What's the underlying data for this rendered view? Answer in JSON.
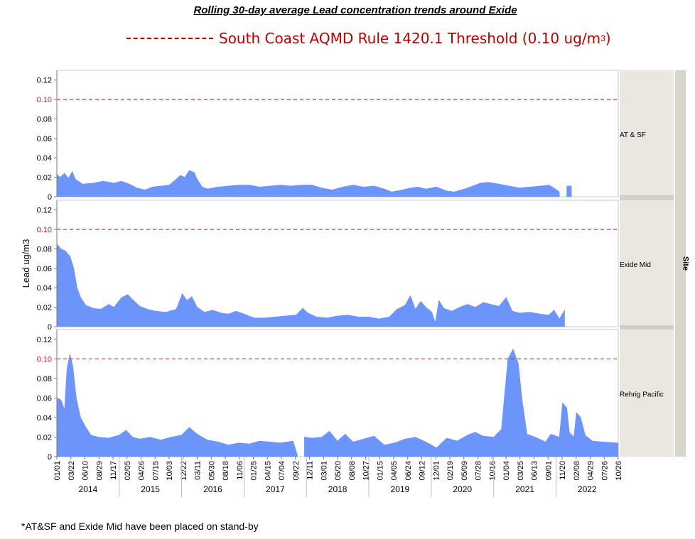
{
  "title": "Rolling 30-day average Lead concentration trends around Exide",
  "legend": {
    "text": "South Coast AQMD Rule 1420.1 Threshold (0.10 ug/m",
    "sup": "3",
    "close": ")"
  },
  "footnote": "*AT&SF and Exide Mid have been placed on stand-by",
  "colors": {
    "series": "#6b95fb",
    "threshold": "#e11c1c",
    "strip": "#e9e7df",
    "panel_border": "#c9c9c9"
  },
  "chart_data": {
    "type": "area",
    "ylabel": "Lead ug/m3",
    "ylim": [
      0,
      0.13
    ],
    "yticks": [
      "0",
      "0.02",
      "0.04",
      "0.06",
      "0.08",
      "0.10",
      "0.12"
    ],
    "threshold": 0.1,
    "group_label": "Site",
    "x_tick_labels": [
      "01/01",
      "03/22",
      "06/10",
      "08/29",
      "11/17",
      "02/05",
      "04/26",
      "07/15",
      "10/03",
      "12/22",
      "03/11",
      "05/30",
      "08/18",
      "11/06",
      "01/25",
      "04/15",
      "07/04",
      "09/22",
      "12/11",
      "03/01",
      "05/20",
      "08/08",
      "10/27",
      "01/15",
      "04/05",
      "06/24",
      "09/12",
      "12/01",
      "02/19",
      "05/09",
      "07/28",
      "10/16",
      "01/04",
      "03/25",
      "06/13",
      "09/01",
      "11/20",
      "02/08",
      "04/29",
      "07/26",
      "10/26"
    ],
    "year_labels": [
      "2014",
      "2015",
      "2016",
      "2017",
      "2018",
      "2019",
      "2020",
      "2021",
      "2022"
    ],
    "date_range": [
      "2014-01-01",
      "2022-12-31"
    ],
    "series": [
      {
        "name": "AT & SF",
        "points": [
          [
            "2014-01-01",
            0.023
          ],
          [
            "2014-01-20",
            0.02
          ],
          [
            "2014-02-15",
            0.024
          ],
          [
            "2014-03-10",
            0.019
          ],
          [
            "2014-04-01",
            0.026
          ],
          [
            "2014-04-20",
            0.018
          ],
          [
            "2014-06-01",
            0.013
          ],
          [
            "2014-08-01",
            0.014
          ],
          [
            "2014-10-01",
            0.016
          ],
          [
            "2014-12-01",
            0.014
          ],
          [
            "2015-01-15",
            0.016
          ],
          [
            "2015-03-01",
            0.013
          ],
          [
            "2015-04-15",
            0.009
          ],
          [
            "2015-06-01",
            0.007
          ],
          [
            "2015-07-15",
            0.01
          ],
          [
            "2015-09-01",
            0.011
          ],
          [
            "2015-10-20",
            0.012
          ],
          [
            "2015-12-01",
            0.018
          ],
          [
            "2015-12-25",
            0.022
          ],
          [
            "2016-01-20",
            0.02
          ],
          [
            "2016-02-15",
            0.027
          ],
          [
            "2016-03-15",
            0.025
          ],
          [
            "2016-04-01",
            0.018
          ],
          [
            "2016-05-01",
            0.01
          ],
          [
            "2016-06-01",
            0.008
          ],
          [
            "2016-08-01",
            0.01
          ],
          [
            "2016-10-01",
            0.011
          ],
          [
            "2016-12-01",
            0.012
          ],
          [
            "2017-02-01",
            0.012
          ],
          [
            "2017-04-01",
            0.01
          ],
          [
            "2017-06-01",
            0.011
          ],
          [
            "2017-08-01",
            0.012
          ],
          [
            "2017-10-01",
            0.011
          ],
          [
            "2017-12-01",
            0.012
          ],
          [
            "2018-02-01",
            0.012
          ],
          [
            "2018-04-01",
            0.009
          ],
          [
            "2018-06-01",
            0.007
          ],
          [
            "2018-08-01",
            0.01
          ],
          [
            "2018-10-01",
            0.012
          ],
          [
            "2018-12-01",
            0.01
          ],
          [
            "2019-02-01",
            0.011
          ],
          [
            "2019-04-01",
            0.008
          ],
          [
            "2019-05-15",
            0.005
          ],
          [
            "2019-07-15",
            0.007
          ],
          [
            "2019-09-01",
            0.009
          ],
          [
            "2019-10-15",
            0.01
          ],
          [
            "2019-12-01",
            0.008
          ],
          [
            "2020-02-01",
            0.01
          ],
          [
            "2020-04-01",
            0.006
          ],
          [
            "2020-05-15",
            0.005
          ],
          [
            "2020-07-15",
            0.008
          ],
          [
            "2020-09-01",
            0.011
          ],
          [
            "2020-10-15",
            0.014
          ],
          [
            "2020-12-01",
            0.015
          ],
          [
            "2021-02-01",
            0.013
          ],
          [
            "2021-04-01",
            0.011
          ],
          [
            "2021-06-01",
            0.009
          ],
          [
            "2021-08-01",
            0.01
          ],
          [
            "2021-10-01",
            0.011
          ],
          [
            "2021-11-20",
            0.012
          ],
          [
            "2021-12-20",
            0.009
          ],
          [
            "2022-01-20",
            0.005
          ],
          null,
          [
            "2022-03-05",
            0.011
          ],
          [
            "2022-04-01",
            0.011
          ]
        ]
      },
      {
        "name": "Exide Mid",
        "points": [
          [
            "2014-01-01",
            0.085
          ],
          [
            "2014-01-25",
            0.08
          ],
          [
            "2014-02-20",
            0.078
          ],
          [
            "2014-03-20",
            0.072
          ],
          [
            "2014-04-10",
            0.06
          ],
          [
            "2014-04-30",
            0.04
          ],
          [
            "2014-05-20",
            0.03
          ],
          [
            "2014-06-20",
            0.022
          ],
          [
            "2014-08-01",
            0.019
          ],
          [
            "2014-09-15",
            0.018
          ],
          [
            "2014-11-01",
            0.023
          ],
          [
            "2014-12-01",
            0.02
          ],
          [
            "2015-01-15",
            0.03
          ],
          [
            "2015-02-20",
            0.033
          ],
          [
            "2015-03-20",
            0.028
          ],
          [
            "2015-05-01",
            0.021
          ],
          [
            "2015-06-15",
            0.018
          ],
          [
            "2015-08-01",
            0.016
          ],
          [
            "2015-10-01",
            0.015
          ],
          [
            "2015-12-01",
            0.018
          ],
          [
            "2016-01-05",
            0.034
          ],
          [
            "2016-02-01",
            0.027
          ],
          [
            "2016-03-01",
            0.031
          ],
          [
            "2016-04-01",
            0.02
          ],
          [
            "2016-05-15",
            0.015
          ],
          [
            "2016-07-01",
            0.017
          ],
          [
            "2016-08-20",
            0.014
          ],
          [
            "2016-10-01",
            0.013
          ],
          [
            "2016-11-15",
            0.016
          ],
          [
            "2017-01-01",
            0.013
          ],
          [
            "2017-03-01",
            0.009
          ],
          [
            "2017-05-01",
            0.009
          ],
          [
            "2017-07-01",
            0.01
          ],
          [
            "2017-09-01",
            0.011
          ],
          [
            "2017-11-01",
            0.012
          ],
          [
            "2017-12-10",
            0.019
          ],
          [
            "2018-01-10",
            0.014
          ],
          [
            "2018-03-01",
            0.01
          ],
          [
            "2018-05-01",
            0.009
          ],
          [
            "2018-07-01",
            0.011
          ],
          [
            "2018-09-01",
            0.012
          ],
          [
            "2018-11-01",
            0.01
          ],
          [
            "2019-01-01",
            0.01
          ],
          [
            "2019-03-01",
            0.008
          ],
          [
            "2019-05-01",
            0.01
          ],
          [
            "2019-06-15",
            0.018
          ],
          [
            "2019-08-01",
            0.022
          ],
          [
            "2019-09-01",
            0.032
          ],
          [
            "2019-10-01",
            0.018
          ],
          [
            "2019-11-01",
            0.026
          ],
          [
            "2019-12-01",
            0.02
          ],
          [
            "2020-01-05",
            0.015
          ],
          [
            "2020-01-25",
            0.004
          ],
          [
            "2020-02-15",
            0.027
          ],
          [
            "2020-03-15",
            0.019
          ],
          [
            "2020-05-01",
            0.016
          ],
          [
            "2020-06-15",
            0.02
          ],
          [
            "2020-08-01",
            0.023
          ],
          [
            "2020-09-15",
            0.02
          ],
          [
            "2020-11-01",
            0.025
          ],
          [
            "2020-12-15",
            0.023
          ],
          [
            "2021-02-01",
            0.021
          ],
          [
            "2021-03-15",
            0.03
          ],
          [
            "2021-04-20",
            0.016
          ],
          [
            "2021-06-01",
            0.014
          ],
          [
            "2021-08-01",
            0.015
          ],
          [
            "2021-10-01",
            0.013
          ],
          [
            "2021-11-20",
            0.012
          ],
          [
            "2021-12-20",
            0.017
          ],
          [
            "2022-01-20",
            0.008
          ],
          [
            "2022-02-20",
            0.017
          ]
        ]
      },
      {
        "name": "Rehrig Pacific",
        "points": [
          [
            "2014-01-01",
            0.06
          ],
          [
            "2014-01-25",
            0.058
          ],
          [
            "2014-02-15",
            0.048
          ],
          [
            "2014-03-01",
            0.09
          ],
          [
            "2014-03-18",
            0.105
          ],
          [
            "2014-04-05",
            0.092
          ],
          [
            "2014-04-25",
            0.06
          ],
          [
            "2014-05-20",
            0.04
          ],
          [
            "2014-06-20",
            0.03
          ],
          [
            "2014-07-20",
            0.022
          ],
          [
            "2014-09-01",
            0.02
          ],
          [
            "2014-11-01",
            0.019
          ],
          [
            "2015-01-01",
            0.022
          ],
          [
            "2015-02-10",
            0.027
          ],
          [
            "2015-03-20",
            0.02
          ],
          [
            "2015-05-01",
            0.018
          ],
          [
            "2015-07-01",
            0.02
          ],
          [
            "2015-09-01",
            0.017
          ],
          [
            "2015-11-01",
            0.02
          ],
          [
            "2016-01-01",
            0.022
          ],
          [
            "2016-02-15",
            0.03
          ],
          [
            "2016-04-01",
            0.023
          ],
          [
            "2016-06-01",
            0.017
          ],
          [
            "2016-08-01",
            0.015
          ],
          [
            "2016-10-01",
            0.012
          ],
          [
            "2016-12-01",
            0.014
          ],
          [
            "2017-02-01",
            0.013
          ],
          [
            "2017-04-01",
            0.016
          ],
          [
            "2017-06-01",
            0.015
          ],
          [
            "2017-08-01",
            0.014
          ],
          [
            "2017-10-15",
            0.016
          ],
          [
            "2017-11-10",
            0.001
          ],
          null,
          [
            "2017-12-20",
            0.02
          ],
          [
            "2018-02-01",
            0.019
          ],
          [
            "2018-04-01",
            0.02
          ],
          [
            "2018-05-15",
            0.026
          ],
          [
            "2018-07-01",
            0.016
          ],
          [
            "2018-08-15",
            0.023
          ],
          [
            "2018-10-01",
            0.015
          ],
          [
            "2018-12-01",
            0.018
          ],
          [
            "2019-02-01",
            0.021
          ],
          [
            "2019-04-01",
            0.012
          ],
          [
            "2019-06-01",
            0.014
          ],
          [
            "2019-08-01",
            0.018
          ],
          [
            "2019-10-01",
            0.02
          ],
          [
            "2019-12-01",
            0.015
          ],
          [
            "2020-02-01",
            0.009
          ],
          [
            "2020-04-01",
            0.019
          ],
          [
            "2020-06-01",
            0.016
          ],
          [
            "2020-08-01",
            0.022
          ],
          [
            "2020-09-15",
            0.025
          ],
          [
            "2020-11-01",
            0.021
          ],
          [
            "2021-01-01",
            0.02
          ],
          [
            "2021-02-15",
            0.028
          ],
          [
            "2021-03-25",
            0.1
          ],
          [
            "2021-04-25",
            0.11
          ],
          [
            "2021-05-25",
            0.095
          ],
          [
            "2021-06-15",
            0.06
          ],
          [
            "2021-07-15",
            0.023
          ],
          [
            "2021-09-01",
            0.02
          ],
          [
            "2021-11-01",
            0.015
          ],
          [
            "2021-12-01",
            0.023
          ],
          [
            "2022-01-20",
            0.02
          ],
          [
            "2022-02-08",
            0.055
          ],
          [
            "2022-03-05",
            0.05
          ],
          [
            "2022-03-20",
            0.025
          ],
          [
            "2022-04-15",
            0.02
          ],
          [
            "2022-04-30",
            0.045
          ],
          [
            "2022-05-25",
            0.04
          ],
          [
            "2022-06-20",
            0.022
          ],
          [
            "2022-08-01",
            0.016
          ],
          [
            "2022-10-01",
            0.015
          ],
          [
            "2022-12-31",
            0.014
          ]
        ]
      }
    ]
  }
}
